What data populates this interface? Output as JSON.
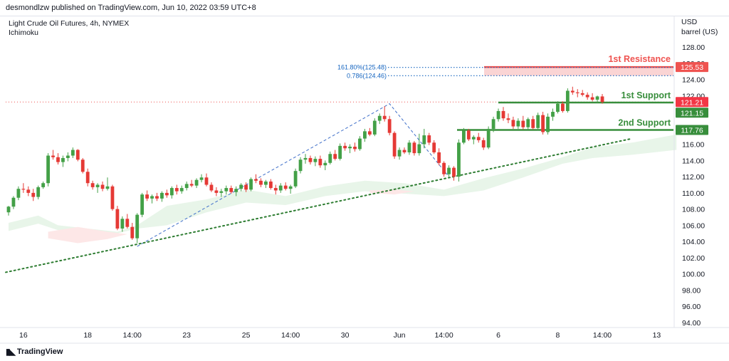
{
  "header": {
    "published": "desmondlzw published on TradingView.com, Jun 10, 2022 03:59 UTC+8"
  },
  "legend": {
    "symbol": "Light Crude Oil Futures, 4h, NYMEX",
    "indicator": "Ichimoku"
  },
  "footer": {
    "brand": "TradingView",
    "brand_icon": "tradingview-logo-icon"
  },
  "colors": {
    "up": "#43a047",
    "down": "#e53935",
    "resistance": "#ef5350",
    "support": "#388e3c",
    "fib": "#1565c0",
    "cloud_bull": "#e8f5e9",
    "cloud_bear": "#fde7e7"
  },
  "chart_data": {
    "type": "candlestick",
    "currency": "USD",
    "unit": "barrel (US)",
    "ylim": [
      93,
      130
    ],
    "y_ticks": [
      "94.00",
      "96.00",
      "98.00",
      "100.00",
      "102.00",
      "104.00",
      "106.00",
      "108.00",
      "110.00",
      "112.00",
      "114.00",
      "116.00",
      "118.00",
      "120.00",
      "122.00",
      "124.00",
      "126.00",
      "128.00"
    ],
    "x_ticks": [
      {
        "label": "16",
        "i": 3
      },
      {
        "label": "18",
        "i": 16
      },
      {
        "label": "14:00",
        "i": 25
      },
      {
        "label": "23",
        "i": 36
      },
      {
        "label": "25",
        "i": 48
      },
      {
        "label": "14:00",
        "i": 57
      },
      {
        "label": "30",
        "i": 68
      },
      {
        "label": "Jun",
        "i": 79
      },
      {
        "label": "14:00",
        "i": 88
      },
      {
        "label": "6",
        "i": 99
      },
      {
        "label": "8",
        "i": 111
      },
      {
        "label": "14:00",
        "i": 120
      },
      {
        "label": "13",
        "i": 131
      }
    ],
    "candles": [
      [
        107.6,
        108.4,
        107.2,
        108.3
      ],
      [
        108.3,
        109.6,
        108.0,
        109.4
      ],
      [
        109.4,
        110.8,
        109.1,
        110.5
      ],
      [
        110.5,
        111.2,
        110.0,
        110.4
      ],
      [
        110.4,
        110.8,
        109.6,
        110.0
      ],
      [
        110.0,
        110.5,
        109.0,
        109.5
      ],
      [
        109.5,
        110.9,
        109.2,
        110.7
      ],
      [
        110.7,
        111.4,
        110.5,
        111.2
      ],
      [
        111.2,
        114.9,
        110.8,
        114.6
      ],
      [
        114.6,
        115.3,
        114.1,
        114.4
      ],
      [
        114.4,
        114.9,
        113.5,
        113.8
      ],
      [
        113.8,
        114.6,
        113.2,
        114.3
      ],
      [
        114.3,
        115.0,
        113.9,
        114.6
      ],
      [
        114.6,
        115.6,
        114.3,
        115.3
      ],
      [
        115.3,
        115.4,
        113.9,
        114.1
      ],
      [
        114.1,
        114.3,
        112.4,
        112.6
      ],
      [
        112.6,
        113.0,
        110.8,
        111.2
      ],
      [
        111.2,
        111.5,
        110.4,
        110.7
      ],
      [
        110.7,
        111.2,
        110.0,
        111.0
      ],
      [
        111.0,
        111.4,
        110.2,
        110.5
      ],
      [
        110.5,
        111.9,
        110.3,
        110.8
      ],
      [
        110.8,
        111.0,
        107.8,
        108.0
      ],
      [
        108.0,
        108.4,
        105.4,
        105.6
      ],
      [
        105.6,
        107.1,
        105.2,
        106.8
      ],
      [
        106.8,
        107.4,
        105.6,
        105.8
      ],
      [
        105.8,
        106.3,
        104.2,
        104.4
      ],
      [
        104.4,
        107.5,
        103.8,
        107.3
      ],
      [
        107.3,
        110.0,
        107.0,
        109.8
      ],
      [
        109.8,
        110.3,
        109.0,
        109.3
      ],
      [
        109.3,
        109.8,
        108.7,
        109.6
      ],
      [
        109.6,
        110.0,
        109.0,
        109.3
      ],
      [
        109.3,
        110.2,
        108.9,
        110.0
      ],
      [
        110.0,
        110.4,
        109.4,
        109.7
      ],
      [
        109.7,
        110.8,
        109.3,
        110.6
      ],
      [
        110.6,
        111.0,
        109.8,
        110.2
      ],
      [
        110.2,
        110.9,
        109.9,
        110.6
      ],
      [
        110.6,
        111.4,
        110.3,
        111.1
      ],
      [
        111.1,
        111.6,
        110.7,
        110.9
      ],
      [
        110.9,
        111.8,
        110.6,
        111.6
      ],
      [
        111.6,
        112.3,
        111.3,
        111.9
      ],
      [
        111.9,
        112.4,
        110.8,
        111.0
      ],
      [
        111.0,
        111.3,
        110.1,
        110.3
      ],
      [
        110.3,
        110.7,
        109.6,
        110.0
      ],
      [
        110.0,
        110.5,
        109.5,
        110.2
      ],
      [
        110.2,
        110.9,
        109.8,
        110.6
      ],
      [
        110.6,
        110.9,
        109.9,
        110.1
      ],
      [
        110.1,
        110.8,
        109.6,
        110.5
      ],
      [
        110.5,
        111.2,
        110.2,
        111.0
      ],
      [
        111.0,
        111.3,
        110.1,
        110.4
      ],
      [
        110.4,
        111.9,
        110.2,
        111.7
      ],
      [
        111.7,
        112.3,
        111.2,
        111.5
      ],
      [
        111.5,
        111.8,
        110.7,
        111.0
      ],
      [
        111.0,
        111.6,
        110.6,
        111.4
      ],
      [
        111.4,
        111.7,
        110.4,
        110.6
      ],
      [
        110.6,
        111.0,
        109.8,
        110.3
      ],
      [
        110.3,
        111.2,
        110.0,
        110.9
      ],
      [
        110.9,
        111.3,
        110.3,
        110.5
      ],
      [
        110.5,
        111.0,
        109.9,
        110.8
      ],
      [
        110.8,
        113.0,
        110.6,
        112.7
      ],
      [
        112.7,
        114.4,
        112.4,
        114.1
      ],
      [
        114.1,
        114.8,
        113.6,
        114.3
      ],
      [
        114.3,
        114.6,
        113.5,
        113.8
      ],
      [
        113.8,
        114.5,
        113.3,
        114.2
      ],
      [
        114.2,
        114.6,
        113.1,
        113.4
      ],
      [
        113.4,
        114.0,
        112.8,
        113.7
      ],
      [
        113.7,
        115.1,
        113.5,
        114.8
      ],
      [
        114.8,
        115.3,
        114.0,
        114.2
      ],
      [
        114.2,
        116.1,
        114.0,
        115.8
      ],
      [
        115.8,
        116.2,
        115.2,
        115.5
      ],
      [
        115.5,
        116.0,
        114.9,
        115.7
      ],
      [
        115.7,
        116.2,
        115.1,
        115.4
      ],
      [
        115.4,
        117.0,
        115.2,
        116.7
      ],
      [
        116.7,
        117.9,
        116.3,
        117.6
      ],
      [
        117.6,
        118.0,
        117.0,
        117.2
      ],
      [
        117.2,
        119.2,
        117.0,
        118.9
      ],
      [
        118.9,
        119.8,
        118.5,
        119.5
      ],
      [
        119.5,
        120.7,
        118.8,
        119.1
      ],
      [
        119.1,
        119.5,
        117.1,
        117.4
      ],
      [
        117.4,
        117.6,
        114.2,
        114.5
      ],
      [
        114.5,
        115.6,
        114.1,
        115.3
      ],
      [
        115.3,
        115.6,
        114.8,
        115.0
      ],
      [
        115.0,
        116.5,
        114.7,
        116.2
      ],
      [
        116.2,
        116.4,
        114.6,
        114.9
      ],
      [
        114.9,
        117.3,
        114.6,
        116.0
      ],
      [
        116.0,
        117.9,
        115.5,
        117.1
      ],
      [
        117.1,
        117.4,
        115.9,
        116.2
      ],
      [
        116.2,
        116.5,
        114.8,
        115.0
      ],
      [
        115.0,
        115.5,
        113.4,
        113.7
      ],
      [
        113.7,
        113.9,
        112.0,
        112.3
      ],
      [
        112.3,
        113.4,
        112.0,
        113.1
      ],
      [
        113.1,
        113.3,
        111.5,
        112.0
      ],
      [
        112.0,
        116.6,
        111.4,
        116.2
      ],
      [
        116.2,
        118.0,
        116.0,
        117.7
      ],
      [
        117.7,
        117.9,
        116.4,
        116.6
      ],
      [
        116.6,
        117.1,
        116.0,
        116.9
      ],
      [
        116.9,
        117.4,
        116.2,
        116.5
      ],
      [
        116.5,
        116.8,
        115.3,
        115.6
      ],
      [
        115.6,
        118.2,
        115.4,
        117.9
      ],
      [
        117.9,
        119.4,
        117.5,
        119.1
      ],
      [
        119.1,
        120.4,
        118.8,
        120.1
      ],
      [
        120.1,
        120.6,
        118.9,
        119.2
      ],
      [
        119.2,
        119.8,
        118.6,
        119.0
      ],
      [
        119.0,
        119.4,
        117.9,
        118.2
      ],
      [
        118.2,
        119.2,
        117.9,
        118.9
      ],
      [
        118.9,
        119.5,
        117.8,
        118.1
      ],
      [
        118.1,
        119.3,
        117.8,
        119.1
      ],
      [
        119.1,
        119.5,
        117.8,
        118.0
      ],
      [
        118.0,
        119.9,
        117.7,
        119.6
      ],
      [
        119.6,
        120.0,
        117.2,
        117.5
      ],
      [
        117.5,
        119.8,
        117.2,
        119.4
      ],
      [
        119.4,
        120.4,
        118.9,
        120.0
      ],
      [
        120.0,
        121.3,
        119.8,
        121.0
      ],
      [
        121.0,
        121.3,
        119.9,
        120.1
      ],
      [
        120.1,
        122.9,
        119.9,
        122.6
      ],
      [
        122.6,
        123.1,
        122.1,
        122.4
      ],
      [
        122.4,
        122.8,
        121.8,
        122.3
      ],
      [
        122.3,
        122.7,
        121.9,
        122.1
      ],
      [
        122.1,
        122.4,
        121.5,
        121.8
      ],
      [
        121.8,
        122.3,
        121.3,
        121.5
      ],
      [
        121.5,
        122.0,
        121.1,
        121.9
      ],
      [
        121.9,
        122.2,
        121.0,
        121.21
      ]
    ],
    "levels": [
      {
        "name": "1st Resistance",
        "value": 125.53,
        "label": "125.53",
        "role": "resistance"
      },
      {
        "name": "1st Support",
        "value": 121.15,
        "label": "121.15",
        "role": "support"
      },
      {
        "name": "2nd Support",
        "value": 117.76,
        "label": "117.76",
        "role": "support"
      }
    ],
    "last_price": {
      "value": 121.21,
      "label": "121.21"
    },
    "fib_labels": [
      {
        "text": "161.80%(125.48)",
        "value": 125.48
      },
      {
        "text": "0.786(124.46)",
        "value": 124.46
      }
    ],
    "trendline": {
      "from": {
        "i": 0,
        "price": 100.2
      },
      "to": {
        "i": 126,
        "price": 116.7
      }
    },
    "pattern_points": [
      {
        "i": 26,
        "price": 103.4
      },
      {
        "i": 77,
        "price": 121.0
      },
      {
        "i": 89,
        "price": 112.0
      }
    ]
  }
}
